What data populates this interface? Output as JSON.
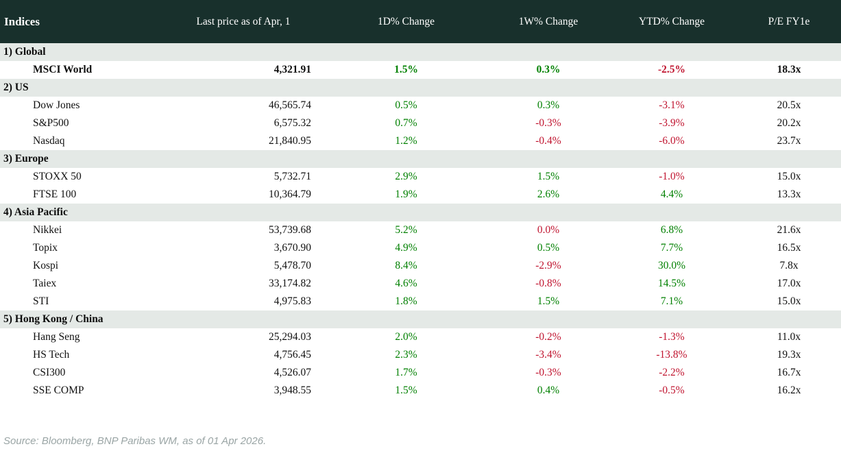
{
  "colors": {
    "header_bg": "#18302c",
    "section_bg": "#e4e9e6",
    "up": "#008000",
    "down": "#c0142f",
    "source_text": "#9aa5a5"
  },
  "table": {
    "columns": [
      "Indices",
      "Last price as of Apr, 1",
      "1D% Change",
      "1W% Change",
      "YTD% Change",
      "P/E FY1e"
    ],
    "sections": [
      {
        "label": "1) Global",
        "rows": [
          {
            "name": "MSCI World",
            "bold": true,
            "values": [
              "4,321.91",
              "1.5%",
              "0.3%",
              "-2.5%",
              "18.3x"
            ],
            "trend": [
              "none",
              "up",
              "up",
              "down",
              "none"
            ]
          }
        ]
      },
      {
        "label": "2) US",
        "rows": [
          {
            "name": "Dow Jones",
            "bold": false,
            "values": [
              "46,565.74",
              "0.5%",
              "0.3%",
              "-3.1%",
              "20.5x"
            ],
            "trend": [
              "none",
              "up",
              "up",
              "down",
              "none"
            ]
          },
          {
            "name": "S&P500",
            "bold": false,
            "values": [
              "6,575.32",
              "0.7%",
              "-0.3%",
              "-3.9%",
              "20.2x"
            ],
            "trend": [
              "none",
              "up",
              "down",
              "down",
              "none"
            ]
          },
          {
            "name": "Nasdaq",
            "bold": false,
            "values": [
              "21,840.95",
              "1.2%",
              "-0.4%",
              "-6.0%",
              "23.7x"
            ],
            "trend": [
              "none",
              "up",
              "down",
              "down",
              "none"
            ]
          }
        ]
      },
      {
        "label": "3) Europe",
        "rows": [
          {
            "name": "STOXX 50",
            "bold": false,
            "values": [
              "5,732.71",
              "2.9%",
              "1.5%",
              "-1.0%",
              "15.0x"
            ],
            "trend": [
              "none",
              "up",
              "up",
              "down",
              "none"
            ]
          },
          {
            "name": "FTSE 100",
            "bold": false,
            "values": [
              "10,364.79",
              "1.9%",
              "2.6%",
              "4.4%",
              "13.3x"
            ],
            "trend": [
              "none",
              "up",
              "up",
              "up",
              "none"
            ]
          }
        ]
      },
      {
        "label": "4) Asia Pacific",
        "rows": [
          {
            "name": "Nikkei",
            "bold": false,
            "values": [
              "53,739.68",
              "5.2%",
              "0.0%",
              "6.8%",
              "21.6x"
            ],
            "trend": [
              "none",
              "up",
              "down",
              "up",
              "none"
            ]
          },
          {
            "name": "Topix",
            "bold": false,
            "values": [
              "3,670.90",
              "4.9%",
              "0.5%",
              "7.7%",
              "16.5x"
            ],
            "trend": [
              "none",
              "up",
              "up",
              "up",
              "none"
            ]
          },
          {
            "name": "Kospi",
            "bold": false,
            "values": [
              "5,478.70",
              "8.4%",
              "-2.9%",
              "30.0%",
              "7.8x"
            ],
            "trend": [
              "none",
              "up",
              "down",
              "up",
              "none"
            ]
          },
          {
            "name": "Taiex",
            "bold": false,
            "values": [
              "33,174.82",
              "4.6%",
              "-0.8%",
              "14.5%",
              "17.0x"
            ],
            "trend": [
              "none",
              "up",
              "down",
              "up",
              "none"
            ]
          },
          {
            "name": "STI",
            "bold": false,
            "values": [
              "4,975.83",
              "1.8%",
              "1.5%",
              "7.1%",
              "15.0x"
            ],
            "trend": [
              "none",
              "up",
              "up",
              "up",
              "none"
            ]
          }
        ]
      },
      {
        "label": "5) Hong Kong / China",
        "rows": [
          {
            "name": "Hang Seng",
            "bold": false,
            "values": [
              "25,294.03",
              "2.0%",
              "-0.2%",
              "-1.3%",
              "11.0x"
            ],
            "trend": [
              "none",
              "up",
              "down",
              "down",
              "none"
            ]
          },
          {
            "name": "HS Tech",
            "bold": false,
            "values": [
              "4,756.45",
              "2.3%",
              "-3.4%",
              "-13.8%",
              "19.3x"
            ],
            "trend": [
              "none",
              "up",
              "down",
              "down",
              "none"
            ]
          },
          {
            "name": "CSI300",
            "bold": false,
            "values": [
              "4,526.07",
              "1.7%",
              "-0.3%",
              "-2.2%",
              "16.7x"
            ],
            "trend": [
              "none",
              "up",
              "down",
              "down",
              "none"
            ]
          },
          {
            "name": "SSE COMP",
            "bold": false,
            "values": [
              "3,948.55",
              "1.5%",
              "0.4%",
              "-0.5%",
              "16.2x"
            ],
            "trend": [
              "none",
              "up",
              "up",
              "down",
              "none"
            ]
          }
        ]
      }
    ]
  },
  "footer": {
    "source": "Source: Bloomberg, BNP Paribas WM, as of 01 Apr 2026."
  }
}
